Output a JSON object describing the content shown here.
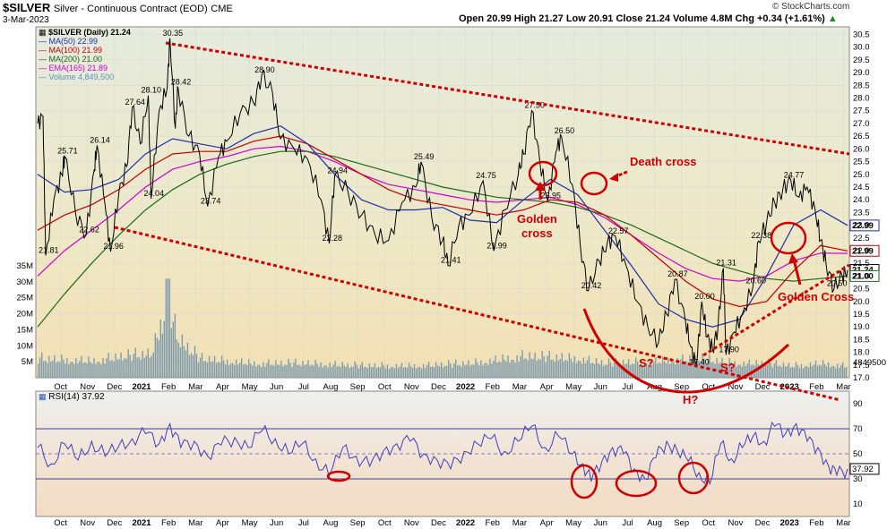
{
  "header": {
    "symbol": "$SILVER",
    "description": "Silver - Continuous Contract (EOD)",
    "exchange": "CME",
    "date": "3-Mar-2023",
    "ohlc": "Open 20.99  High 21.27  Low 20.91  Close 21.24  Volume 4.8M  Chg +0.34 (+1.61%)",
    "chg_arrow": "▲",
    "watermark": "© StockCharts.com"
  },
  "legend": [
    {
      "text": "$SILVER (Daily) 21.24",
      "color": "#000000"
    },
    {
      "text": "MA(50) 22.99",
      "color": "#1f2fa8"
    },
    {
      "text": "MA(100) 21.99",
      "color": "#c00000"
    },
    {
      "text": "MA(200) 21.00",
      "color": "#1a6b1a"
    },
    {
      "text": "EMA(165) 21.89",
      "color": "#d000d0"
    },
    {
      "text": "Volume 4,849,500",
      "color": "#5a8fc0"
    }
  ],
  "rsi_legend": {
    "text": "RSI(14) 37.92",
    "color": "#000000"
  },
  "annotations": {
    "death_cross": "Death cross",
    "golden_cross_1": "Golden",
    "golden_cross_1b": "cross",
    "golden_cross_2": "Golden Cross",
    "s1": "S?",
    "s2": "S?",
    "h": "H?"
  },
  "colors": {
    "price": "#000000",
    "ma50": "#1f2fa8",
    "ma100": "#c00000",
    "ma200": "#1a6b1a",
    "ema165": "#d000d0",
    "volume": "#7f9cae",
    "rsi": "#3f3fbf",
    "annotation": "#d00000",
    "panel_top": "#e8ecd8",
    "panel_bottom": "#f2e0b8",
    "rsi_bg": "#f4dcc4"
  },
  "chart_data": [
    {
      "type": "line",
      "title": "$SILVER Silver - Continuous Contract (EOD)",
      "y_right_ticks": [
        "30.5",
        "30.0",
        "29.5",
        "29.0",
        "28.5",
        "28.0",
        "27.5",
        "27.0",
        "26.5",
        "26.0",
        "25.5",
        "25.0",
        "24.5",
        "24.0",
        "23.5",
        "23.0",
        "22.5",
        "22.0",
        "21.5",
        "21.0",
        "20.5",
        "20.0",
        "19.5",
        "19.0",
        "18.5",
        "18.0",
        "17.5",
        "17.0"
      ],
      "y_left_ticks": [
        "35M",
        "30M",
        "25M",
        "20M",
        "15M",
        "10M",
        "5M"
      ],
      "ylim": [
        17,
        30.8
      ],
      "x_labels": [
        "Oct",
        "Nov",
        "Dec",
        "2021",
        "Feb",
        "Mar",
        "Apr",
        "May",
        "Jun",
        "Jul",
        "Aug",
        "Sep",
        "Oct",
        "Nov",
        "Dec",
        "2022",
        "Feb",
        "Mar",
        "Apr",
        "May",
        "Jun",
        "Jul",
        "Aug",
        "Sep",
        "Oct",
        "Nov",
        "Dec",
        "2023",
        "Feb",
        "Mar"
      ],
      "price_labels": [
        {
          "t": 0.3,
          "v": 21.81,
          "text": "21.81"
        },
        {
          "t": 1.0,
          "v": 25.71,
          "text": "25.71"
        },
        {
          "t": 1.8,
          "v": 22.62,
          "text": "22.62"
        },
        {
          "t": 2.2,
          "v": 26.14,
          "text": "26.14"
        },
        {
          "t": 2.7,
          "v": 21.96,
          "text": "21.96"
        },
        {
          "t": 3.5,
          "v": 27.64,
          "text": "27.64"
        },
        {
          "t": 4.1,
          "v": 28.1,
          "text": "28.10"
        },
        {
          "t": 4.2,
          "v": 24.04,
          "text": "24.04"
        },
        {
          "t": 4.9,
          "v": 30.35,
          "text": "30.35"
        },
        {
          "t": 5.2,
          "v": 28.42,
          "text": "28.42"
        },
        {
          "t": 6.3,
          "v": 23.74,
          "text": "23.74"
        },
        {
          "t": 8.3,
          "v": 28.9,
          "text": "28.90"
        },
        {
          "t": 10.8,
          "v": 22.28,
          "text": "22.28"
        },
        {
          "t": 11.0,
          "v": 24.94,
          "text": "24.94"
        },
        {
          "t": 14.2,
          "v": 25.49,
          "text": "25.49"
        },
        {
          "t": 15.2,
          "v": 21.41,
          "text": "21.41"
        },
        {
          "t": 16.5,
          "v": 24.75,
          "text": "24.75"
        },
        {
          "t": 16.9,
          "v": 21.99,
          "text": "21.99"
        },
        {
          "t": 18.3,
          "v": 27.5,
          "text": "27.50"
        },
        {
          "t": 18.9,
          "v": 23.95,
          "text": "23.95"
        },
        {
          "t": 19.4,
          "v": 26.5,
          "text": "26.50"
        },
        {
          "t": 20.4,
          "v": 20.42,
          "text": "20.42"
        },
        {
          "t": 21.4,
          "v": 22.57,
          "text": "22.57"
        },
        {
          "t": 23.6,
          "v": 20.87,
          "text": "20.87"
        },
        {
          "t": 24.4,
          "v": 17.4,
          "text": "17.40"
        },
        {
          "t": 24.6,
          "v": 20.0,
          "text": "20.00"
        },
        {
          "t": 25.4,
          "v": 21.31,
          "text": "21.31"
        },
        {
          "t": 25.5,
          "v": 17.9,
          "text": "17.90"
        },
        {
          "t": 26.5,
          "v": 20.6,
          "text": "20.60"
        },
        {
          "t": 26.7,
          "v": 22.38,
          "text": "22.38"
        },
        {
          "t": 27.9,
          "v": 24.77,
          "text": "24.77"
        },
        {
          "t": 29.5,
          "v": 20.5,
          "text": "20.50"
        }
      ],
      "right_badges": [
        {
          "v": 22.99,
          "text": "22.99",
          "color": "#1f2fa8"
        },
        {
          "v": 21.99,
          "text": "21.99",
          "color": "#c00000"
        },
        {
          "v": 21.24,
          "text": "21.24",
          "color": "#000000"
        },
        {
          "v": 21.0,
          "text": "21.00",
          "color": "#1a6b1a"
        }
      ],
      "volume_last_label": "4849500",
      "series": [
        {
          "name": "$SILVER (Daily)",
          "x": [
            0,
            0.2,
            0.3,
            0.6,
            0.9,
            1.0,
            1.4,
            1.8,
            2.1,
            2.2,
            2.5,
            2.7,
            3.0,
            3.3,
            3.5,
            3.8,
            4.1,
            4.2,
            4.5,
            4.8,
            4.9,
            5.1,
            5.2,
            5.6,
            6.0,
            6.3,
            6.7,
            7.0,
            7.5,
            8.0,
            8.3,
            8.7,
            9.0,
            9.5,
            10.0,
            10.5,
            10.8,
            11.0,
            11.5,
            12.0,
            12.5,
            13.0,
            13.5,
            14.0,
            14.2,
            14.6,
            15.0,
            15.2,
            15.6,
            16.0,
            16.5,
            16.9,
            17.3,
            17.8,
            18.0,
            18.3,
            18.6,
            18.9,
            19.2,
            19.4,
            19.8,
            20.1,
            20.4,
            20.8,
            21.1,
            21.4,
            21.8,
            22.2,
            22.6,
            23.0,
            23.3,
            23.6,
            24.0,
            24.2,
            24.4,
            24.6,
            24.8,
            25.0,
            25.2,
            25.4,
            25.5,
            25.8,
            26.1,
            26.5,
            26.7,
            27.0,
            27.3,
            27.6,
            27.9,
            28.2,
            28.5,
            28.8,
            29.0,
            29.2,
            29.5,
            29.8,
            30.0
          ],
          "values": [
            27.0,
            27.3,
            21.81,
            24.0,
            25.0,
            25.71,
            23.5,
            22.62,
            25.2,
            26.14,
            23.8,
            21.96,
            24.2,
            25.3,
            27.64,
            26.2,
            28.1,
            24.04,
            27.5,
            28.4,
            30.35,
            26.8,
            28.42,
            26.5,
            25.8,
            23.74,
            25.7,
            26.3,
            27.4,
            27.8,
            28.9,
            28.2,
            26.4,
            26.0,
            25.6,
            24.0,
            22.28,
            24.94,
            24.3,
            23.4,
            22.6,
            22.4,
            23.9,
            24.5,
            25.49,
            23.3,
            22.4,
            21.41,
            23.0,
            23.4,
            24.75,
            21.99,
            23.6,
            25.0,
            25.8,
            27.5,
            25.5,
            23.95,
            25.9,
            26.5,
            24.6,
            22.2,
            20.42,
            21.6,
            22.3,
            22.57,
            21.4,
            20.0,
            19.0,
            18.4,
            19.5,
            20.87,
            19.2,
            18.2,
            17.4,
            20.0,
            18.6,
            18.1,
            19.0,
            21.31,
            17.9,
            18.8,
            19.5,
            20.6,
            22.38,
            23.1,
            23.9,
            24.4,
            24.77,
            24.1,
            24.5,
            23.6,
            22.4,
            21.5,
            20.5,
            21.0,
            21.24
          ]
        },
        {
          "name": "MA(50)",
          "x": [
            0,
            1,
            2,
            3,
            4,
            5,
            6,
            7,
            8,
            9,
            10,
            11,
            12,
            13,
            14,
            15,
            16,
            17,
            18,
            19,
            20,
            21,
            22,
            23,
            24,
            25,
            26,
            27,
            28,
            29,
            30
          ],
          "values": [
            25.0,
            24.3,
            24.4,
            24.8,
            25.8,
            26.4,
            26.2,
            26.0,
            26.6,
            26.9,
            26.2,
            25.0,
            24.0,
            23.6,
            23.6,
            23.7,
            23.2,
            23.1,
            24.0,
            24.8,
            24.2,
            22.8,
            21.4,
            19.9,
            19.3,
            19.0,
            19.3,
            21.0,
            23.0,
            23.6,
            22.99
          ]
        },
        {
          "name": "MA(100)",
          "x": [
            0,
            1,
            2,
            3,
            4,
            5,
            6,
            7,
            8,
            9,
            10,
            11,
            12,
            13,
            14,
            15,
            16,
            17,
            18,
            19,
            20,
            21,
            22,
            23,
            24,
            25,
            26,
            27,
            28,
            29,
            30
          ],
          "values": [
            22.8,
            23.4,
            23.8,
            24.4,
            25.2,
            25.8,
            25.9,
            25.9,
            26.3,
            26.5,
            26.2,
            25.6,
            25.0,
            24.4,
            24.0,
            23.8,
            23.6,
            23.4,
            23.6,
            24.0,
            23.9,
            23.4,
            22.6,
            21.7,
            20.8,
            20.1,
            19.8,
            20.0,
            21.2,
            22.2,
            21.99
          ]
        },
        {
          "name": "MA(200)",
          "x": [
            0,
            1,
            2,
            3,
            4,
            5,
            6,
            7,
            8,
            9,
            10,
            11,
            12,
            13,
            14,
            15,
            16,
            17,
            18,
            19,
            20,
            21,
            22,
            23,
            24,
            25,
            26,
            27,
            28,
            29,
            30
          ],
          "values": [
            19.0,
            20.3,
            21.5,
            22.6,
            23.6,
            24.4,
            25.0,
            25.4,
            25.7,
            25.9,
            25.9,
            25.7,
            25.4,
            25.1,
            24.8,
            24.5,
            24.3,
            24.1,
            24.0,
            23.9,
            23.7,
            23.4,
            23.0,
            22.5,
            22.0,
            21.5,
            21.2,
            20.9,
            20.8,
            20.9,
            21.0
          ]
        },
        {
          "name": "EMA(165)",
          "x": [
            0,
            1,
            2,
            3,
            4,
            5,
            6,
            7,
            8,
            9,
            10,
            11,
            12,
            13,
            14,
            15,
            16,
            17,
            18,
            19,
            20,
            21,
            22,
            23,
            24,
            25,
            26,
            27,
            28,
            29,
            30
          ],
          "values": [
            21.0,
            22.0,
            22.8,
            23.6,
            24.5,
            25.2,
            25.5,
            25.7,
            26.0,
            26.1,
            25.9,
            25.5,
            25.0,
            24.6,
            24.4,
            24.2,
            24.0,
            23.9,
            24.0,
            24.1,
            23.8,
            23.3,
            22.6,
            21.9,
            21.3,
            20.9,
            20.8,
            21.0,
            21.6,
            21.9,
            21.89
          ]
        },
        {
          "name": "Volume",
          "x": [
            0,
            2,
            3.2,
            4.2,
            4.8,
            5.2,
            6,
            8,
            10,
            12,
            14,
            16,
            18,
            20,
            21,
            23,
            24.4,
            26,
            27,
            28,
            29,
            30
          ],
          "values": [
            8,
            7,
            9,
            10,
            31,
            16,
            8,
            6,
            6,
            5,
            5,
            6,
            9,
            8,
            6,
            7,
            8,
            6,
            6,
            5,
            6,
            4.8
          ]
        }
      ]
    },
    {
      "type": "line",
      "title": "RSI(14) 37.92",
      "ylim": [
        0,
        100
      ],
      "y_ticks": [
        "90",
        "70",
        "50",
        "30",
        "10"
      ],
      "levels": [
        70,
        50,
        30
      ],
      "right_badge": "37.92",
      "x_labels": [
        "Oct",
        "Nov",
        "Dec",
        "2021",
        "Feb",
        "Mar",
        "Apr",
        "May",
        "Jun",
        "Jul",
        "Aug",
        "Sep",
        "Oct",
        "Nov",
        "Dec",
        "2022",
        "Feb",
        "Mar",
        "Apr",
        "May",
        "Jun",
        "Jul",
        "Aug",
        "Sep",
        "Oct",
        "Nov",
        "Dec",
        "2023",
        "Feb",
        "Mar"
      ],
      "series": [
        {
          "name": "RSI(14)",
          "x": [
            0,
            0.5,
            1,
            1.5,
            2,
            2.5,
            3,
            3.5,
            4,
            4.5,
            4.9,
            5.3,
            5.8,
            6.3,
            6.8,
            7.3,
            7.8,
            8.3,
            8.8,
            9.3,
            9.8,
            10.3,
            10.8,
            11.3,
            11.8,
            12.3,
            12.8,
            13.3,
            13.8,
            14.3,
            14.8,
            15.3,
            15.8,
            16.3,
            16.8,
            17.3,
            17.8,
            18.3,
            18.8,
            19.3,
            19.8,
            20.2,
            20.5,
            20.9,
            21.3,
            21.7,
            22.1,
            22.5,
            22.9,
            23.3,
            23.7,
            24.1,
            24.5,
            24.9,
            25.3,
            25.7,
            26.1,
            26.5,
            26.9,
            27.3,
            27.7,
            28.1,
            28.5,
            28.9,
            29.3,
            29.6,
            30
          ],
          "values": [
            55,
            42,
            58,
            45,
            60,
            48,
            56,
            62,
            66,
            58,
            74,
            55,
            60,
            48,
            57,
            63,
            55,
            68,
            62,
            50,
            58,
            46,
            32,
            55,
            48,
            40,
            52,
            58,
            60,
            50,
            45,
            38,
            52,
            58,
            62,
            52,
            60,
            72,
            55,
            64,
            50,
            42,
            28,
            44,
            55,
            50,
            38,
            30,
            47,
            60,
            52,
            44,
            35,
            26,
            58,
            46,
            55,
            64,
            60,
            72,
            66,
            74,
            60,
            55,
            40,
            33,
            38
          ]
        }
      ]
    }
  ]
}
